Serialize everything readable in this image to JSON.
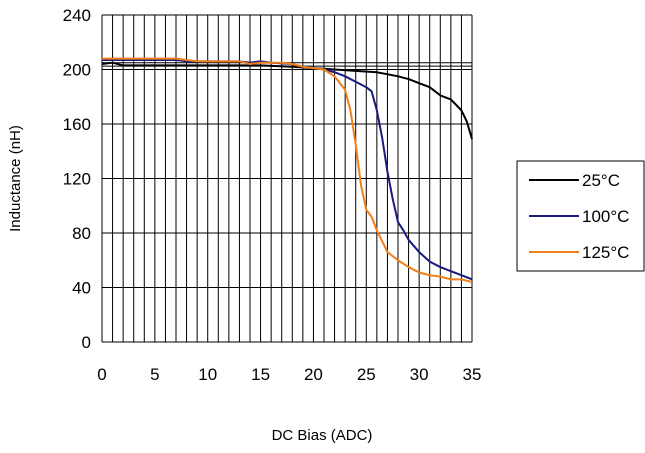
{
  "chart_data": {
    "type": "line",
    "title": "",
    "xlabel": "DC Bias (ADC)",
    "ylabel": "Inductance (nH)",
    "xlim": [
      0,
      35
    ],
    "ylim": [
      0,
      240
    ],
    "x_ticks": [
      0,
      5,
      10,
      15,
      20,
      25,
      30,
      35
    ],
    "y_ticks": [
      0,
      40,
      80,
      120,
      160,
      200,
      240
    ],
    "grid": {
      "vertical_minor_step": 1,
      "horizontal_major_step": 40,
      "horizontal_minor_step": 2.5,
      "horizontal_minor_range": [
        200,
        205
      ]
    },
    "legend_position": "right",
    "series": [
      {
        "name": "25°C",
        "color": "#000000",
        "points": [
          [
            0,
            204
          ],
          [
            1,
            205
          ],
          [
            2,
            203
          ],
          [
            5,
            203
          ],
          [
            10,
            203
          ],
          [
            15,
            203
          ],
          [
            18,
            202
          ],
          [
            20,
            201
          ],
          [
            22,
            200
          ],
          [
            24,
            199
          ],
          [
            26,
            198
          ],
          [
            28,
            195
          ],
          [
            29,
            193
          ],
          [
            30,
            190
          ],
          [
            31,
            187
          ],
          [
            32,
            181
          ],
          [
            33,
            178
          ],
          [
            34,
            170
          ],
          [
            34.5,
            162
          ],
          [
            35,
            149
          ]
        ]
      },
      {
        "name": "100°C",
        "color": "#1a1a80",
        "points": [
          [
            0,
            207
          ],
          [
            5,
            207
          ],
          [
            7,
            207
          ],
          [
            8,
            206
          ],
          [
            10,
            206
          ],
          [
            13,
            206
          ],
          [
            14,
            205
          ],
          [
            15,
            206
          ],
          [
            16,
            205
          ],
          [
            18,
            204
          ],
          [
            19,
            202
          ],
          [
            20,
            201
          ],
          [
            21,
            200
          ],
          [
            22,
            198
          ],
          [
            23,
            195
          ],
          [
            24,
            191
          ],
          [
            25,
            187
          ],
          [
            25.5,
            184
          ],
          [
            26,
            170
          ],
          [
            26.5,
            150
          ],
          [
            27,
            125
          ],
          [
            27.5,
            105
          ],
          [
            28,
            88
          ],
          [
            28.5,
            82
          ],
          [
            29,
            75
          ],
          [
            30,
            66
          ],
          [
            31,
            59
          ],
          [
            32,
            55
          ],
          [
            33,
            52
          ],
          [
            34,
            49
          ],
          [
            35,
            46
          ]
        ]
      },
      {
        "name": "125°C",
        "color": "#f07f1a",
        "points": [
          [
            0,
            208
          ],
          [
            3,
            208
          ],
          [
            5,
            208
          ],
          [
            7,
            208
          ],
          [
            9,
            206
          ],
          [
            12,
            206
          ],
          [
            13,
            206
          ],
          [
            14,
            204
          ],
          [
            15,
            205
          ],
          [
            16,
            205
          ],
          [
            17,
            205
          ],
          [
            18,
            204
          ],
          [
            19,
            202
          ],
          [
            20,
            201
          ],
          [
            21,
            200
          ],
          [
            22,
            195
          ],
          [
            22.5,
            190
          ],
          [
            23,
            185
          ],
          [
            23.5,
            170
          ],
          [
            24,
            145
          ],
          [
            24.5,
            115
          ],
          [
            25,
            97
          ],
          [
            25.5,
            92
          ],
          [
            26,
            82
          ],
          [
            27,
            66
          ],
          [
            28,
            60
          ],
          [
            29,
            55
          ],
          [
            30,
            51
          ],
          [
            31,
            49
          ],
          [
            32,
            48
          ],
          [
            33,
            46
          ],
          [
            34,
            46
          ],
          [
            35,
            44
          ]
        ]
      }
    ]
  }
}
